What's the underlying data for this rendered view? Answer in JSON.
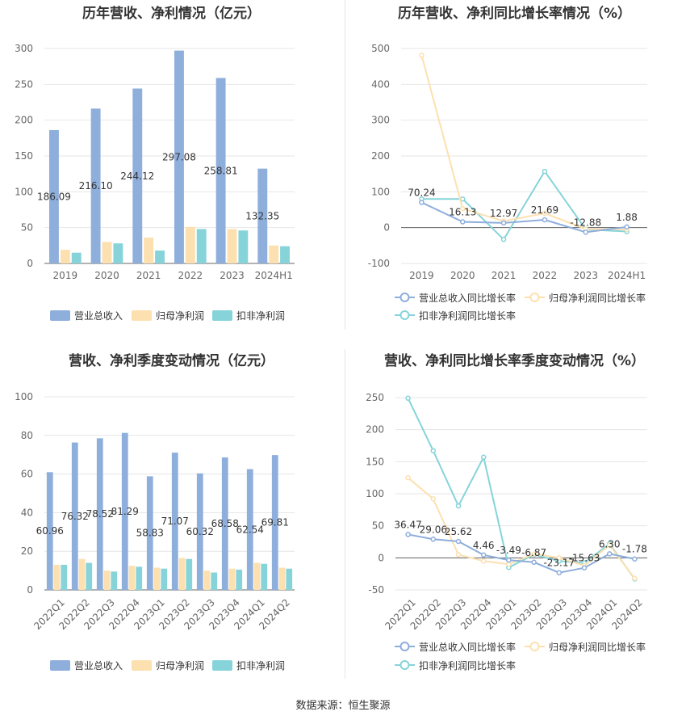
{
  "source": "数据来源：恒生聚源",
  "colors": {
    "revenue": "#8eaedc",
    "parent_profit": "#fde0b0",
    "deducted_profit": "#86d4d9",
    "grid": "#e6e6e6",
    "axis": "#999999"
  },
  "chart_data": [
    {
      "type": "bar",
      "title": "历年营收、净利情况（亿元）",
      "categories": [
        "2019",
        "2020",
        "2021",
        "2022",
        "2023",
        "2024H1"
      ],
      "ylim": [
        0,
        300
      ],
      "yticks": [
        0,
        50,
        100,
        150,
        200,
        250,
        300
      ],
      "series": [
        {
          "name": "营业总收入",
          "values": [
            186.09,
            216.1,
            244.12,
            297.08,
            258.81,
            132.35
          ],
          "labels": [
            "186.09",
            "216.10",
            "244.12",
            "297.08",
            "258.81",
            "132.35"
          ]
        },
        {
          "name": "归母净利润",
          "values": [
            19,
            30,
            36,
            51,
            48,
            25
          ]
        },
        {
          "name": "扣非净利润",
          "values": [
            15,
            28,
            18,
            48,
            46,
            24
          ]
        }
      ],
      "legend": "bottom"
    },
    {
      "type": "line",
      "title": "历年营收、净利同比增长率情况（%）",
      "categories": [
        "2019",
        "2020",
        "2021",
        "2022",
        "2023",
        "2024H1"
      ],
      "ylim": [
        -100,
        500
      ],
      "yticks": [
        -100,
        0,
        100,
        200,
        300,
        400,
        500
      ],
      "series": [
        {
          "name": "营业总收入同比增长率",
          "values": [
            70.24,
            16.13,
            12.97,
            21.69,
            -12.88,
            1.88
          ],
          "labels": [
            "70.24",
            "16.13",
            "12.97",
            "21.69",
            "-12.88",
            "1.88"
          ]
        },
        {
          "name": "归母净利润同比增长率",
          "values": [
            481,
            53,
            18,
            40,
            -4,
            -5
          ]
        },
        {
          "name": "扣非净利润同比增长率",
          "values": [
            80,
            80,
            -33,
            157,
            -5,
            -11
          ]
        }
      ],
      "legend": "bottom"
    },
    {
      "type": "bar",
      "title": "营收、净利季度变动情况（亿元）",
      "categories": [
        "2022Q1",
        "2022Q2",
        "2022Q3",
        "2022Q4",
        "2023Q1",
        "2023Q2",
        "2023Q3",
        "2023Q4",
        "2024Q1",
        "2024Q2"
      ],
      "ylim": [
        0,
        100
      ],
      "yticks": [
        0,
        20,
        40,
        60,
        80,
        100
      ],
      "series": [
        {
          "name": "营业总收入",
          "values": [
            60.96,
            76.32,
            78.52,
            81.29,
            58.83,
            71.07,
            60.32,
            68.58,
            62.54,
            69.81
          ],
          "labels": [
            "60.96",
            "76.32",
            "78.52",
            "81.29",
            "58.83",
            "71.07",
            "60.32",
            "68.58",
            "62.54",
            "69.81"
          ]
        },
        {
          "name": "归母净利润",
          "values": [
            13,
            16,
            10,
            12.5,
            11.5,
            16.5,
            10,
            11,
            14,
            11.5
          ]
        },
        {
          "name": "扣非净利润",
          "values": [
            13,
            14,
            9.5,
            12,
            11,
            16,
            9,
            10.5,
            13.5,
            11
          ]
        }
      ],
      "legend": "bottom"
    },
    {
      "type": "line",
      "title": "营收、净利同比增长率季度变动情况（%）",
      "categories": [
        "2022Q1",
        "2022Q2",
        "2022Q3",
        "2022Q4",
        "2023Q1",
        "2023Q2",
        "2023Q3",
        "2023Q4",
        "2024Q1",
        "2024Q2"
      ],
      "ylim": [
        -50,
        250
      ],
      "yticks": [
        -50,
        0,
        50,
        100,
        150,
        200,
        250
      ],
      "series": [
        {
          "name": "营业总收入同比增长率",
          "values": [
            36.47,
            29.06,
            25.62,
            4.46,
            -3.49,
            -6.87,
            -23.17,
            -15.63,
            6.3,
            -1.78
          ],
          "labels": [
            "36.47",
            "29.06",
            "25.62",
            "4.46",
            "-3.49",
            "-6.87",
            "-23.17",
            "-15.63",
            "6.30",
            "-1.78"
          ]
        },
        {
          "name": "归母净利润同比增长率",
          "values": [
            125,
            92,
            5,
            -5,
            -10,
            6,
            0,
            -12,
            20,
            -32
          ]
        },
        {
          "name": "扣非净利润同比增长率",
          "values": [
            249,
            167,
            81,
            157,
            -15,
            5,
            -5,
            -8,
            22,
            -33
          ]
        }
      ],
      "legend": "bottom"
    }
  ]
}
